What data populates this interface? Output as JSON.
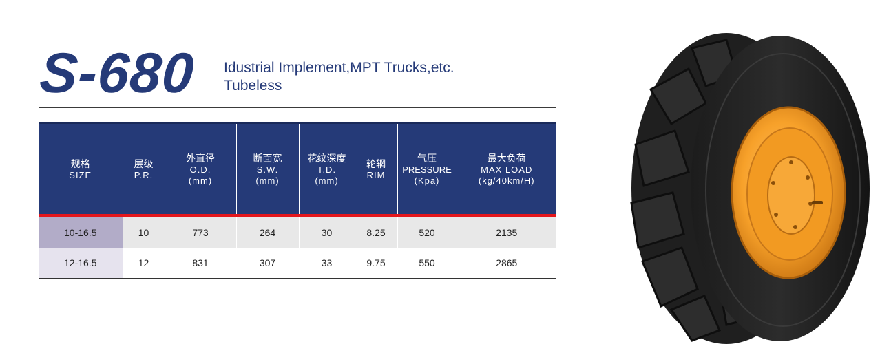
{
  "header": {
    "model": "S-680",
    "application": "Idustrial Implement,MPT Trucks,etc.",
    "type": "Tubeless"
  },
  "table": {
    "columns": [
      {
        "zh": "规格",
        "en": "SIZE",
        "unit": ""
      },
      {
        "zh": "层级",
        "en": "P.R.",
        "unit": ""
      },
      {
        "zh": "外直径",
        "en": "O.D.",
        "unit": "(mm)"
      },
      {
        "zh": "断面宽",
        "en": "S.W.",
        "unit": "(mm)"
      },
      {
        "zh": "花纹深度",
        "en": "T.D.",
        "unit": "(mm)"
      },
      {
        "zh": "轮辋",
        "en": "RIM",
        "unit": ""
      },
      {
        "zh": "气压",
        "en": "PRESSURE",
        "unit": "(Kpa)"
      },
      {
        "zh": "最大负荷",
        "en": "MAX LOAD",
        "unit": "(kg/40km/H)"
      }
    ],
    "rows": [
      [
        "10-16.5",
        "10",
        "773",
        "264",
        "30",
        "8.25",
        "520",
        "2135"
      ],
      [
        "12-16.5",
        "12",
        "831",
        "307",
        "33",
        "9.75",
        "550",
        "2865"
      ]
    ]
  },
  "image": {
    "icon": "tire-with-orange-rim"
  },
  "colors": {
    "brand": "#253a78",
    "accent_bar": "#e4161c",
    "rim": "#f39a1e"
  }
}
